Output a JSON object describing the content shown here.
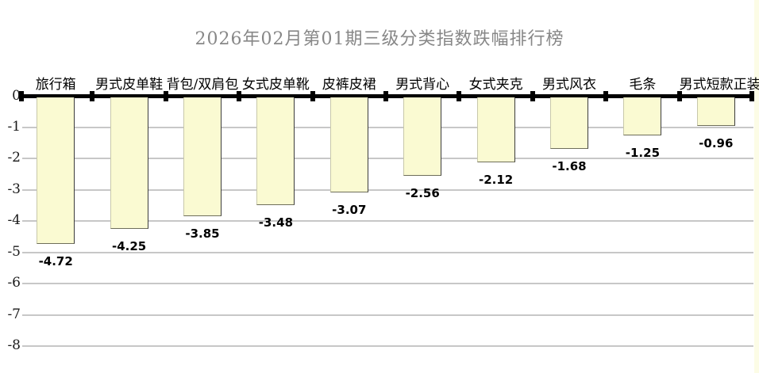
{
  "chart_data": {
    "type": "bar",
    "title": "2026年02月第01期三级分类指数跌幅排行榜",
    "categories": [
      "旅行箱",
      "男式皮单鞋",
      "背包/双肩包",
      "女式皮单靴",
      "皮裤皮裙",
      "男式背心",
      "女式夹克",
      "男式风衣",
      "毛条",
      "男式短款正装"
    ],
    "values": [
      -4.72,
      -4.25,
      -3.85,
      -3.48,
      -3.07,
      -2.56,
      -2.12,
      -1.68,
      -1.25,
      -0.96
    ],
    "data_labels": [
      "-4.72",
      "-4.25",
      "-3.85",
      "-3.48",
      "-3.07",
      "-2.56",
      "-2.12",
      "-1.68",
      "-1.25",
      "-0.96"
    ],
    "y_tick_labels": [
      "0",
      "-1",
      "-2",
      "-3",
      "-4",
      "-5",
      "-6",
      "-7",
      "-8"
    ],
    "ylim": [
      -8,
      0
    ],
    "xlabel": "",
    "ylabel": "",
    "grid": true,
    "legend": "none",
    "colors": {
      "bar_fill": "#FAFAD2",
      "bar_border_light": "#C8C8AA",
      "bar_border_dark": "#3C3C3C",
      "bar_border_bottom": "#6E6E5A",
      "axis_line": "#000000",
      "gridline": "#C7C7C7",
      "title_text": "#878787",
      "label_text": "#000000",
      "right_strip": "#FCFCE6"
    }
  }
}
